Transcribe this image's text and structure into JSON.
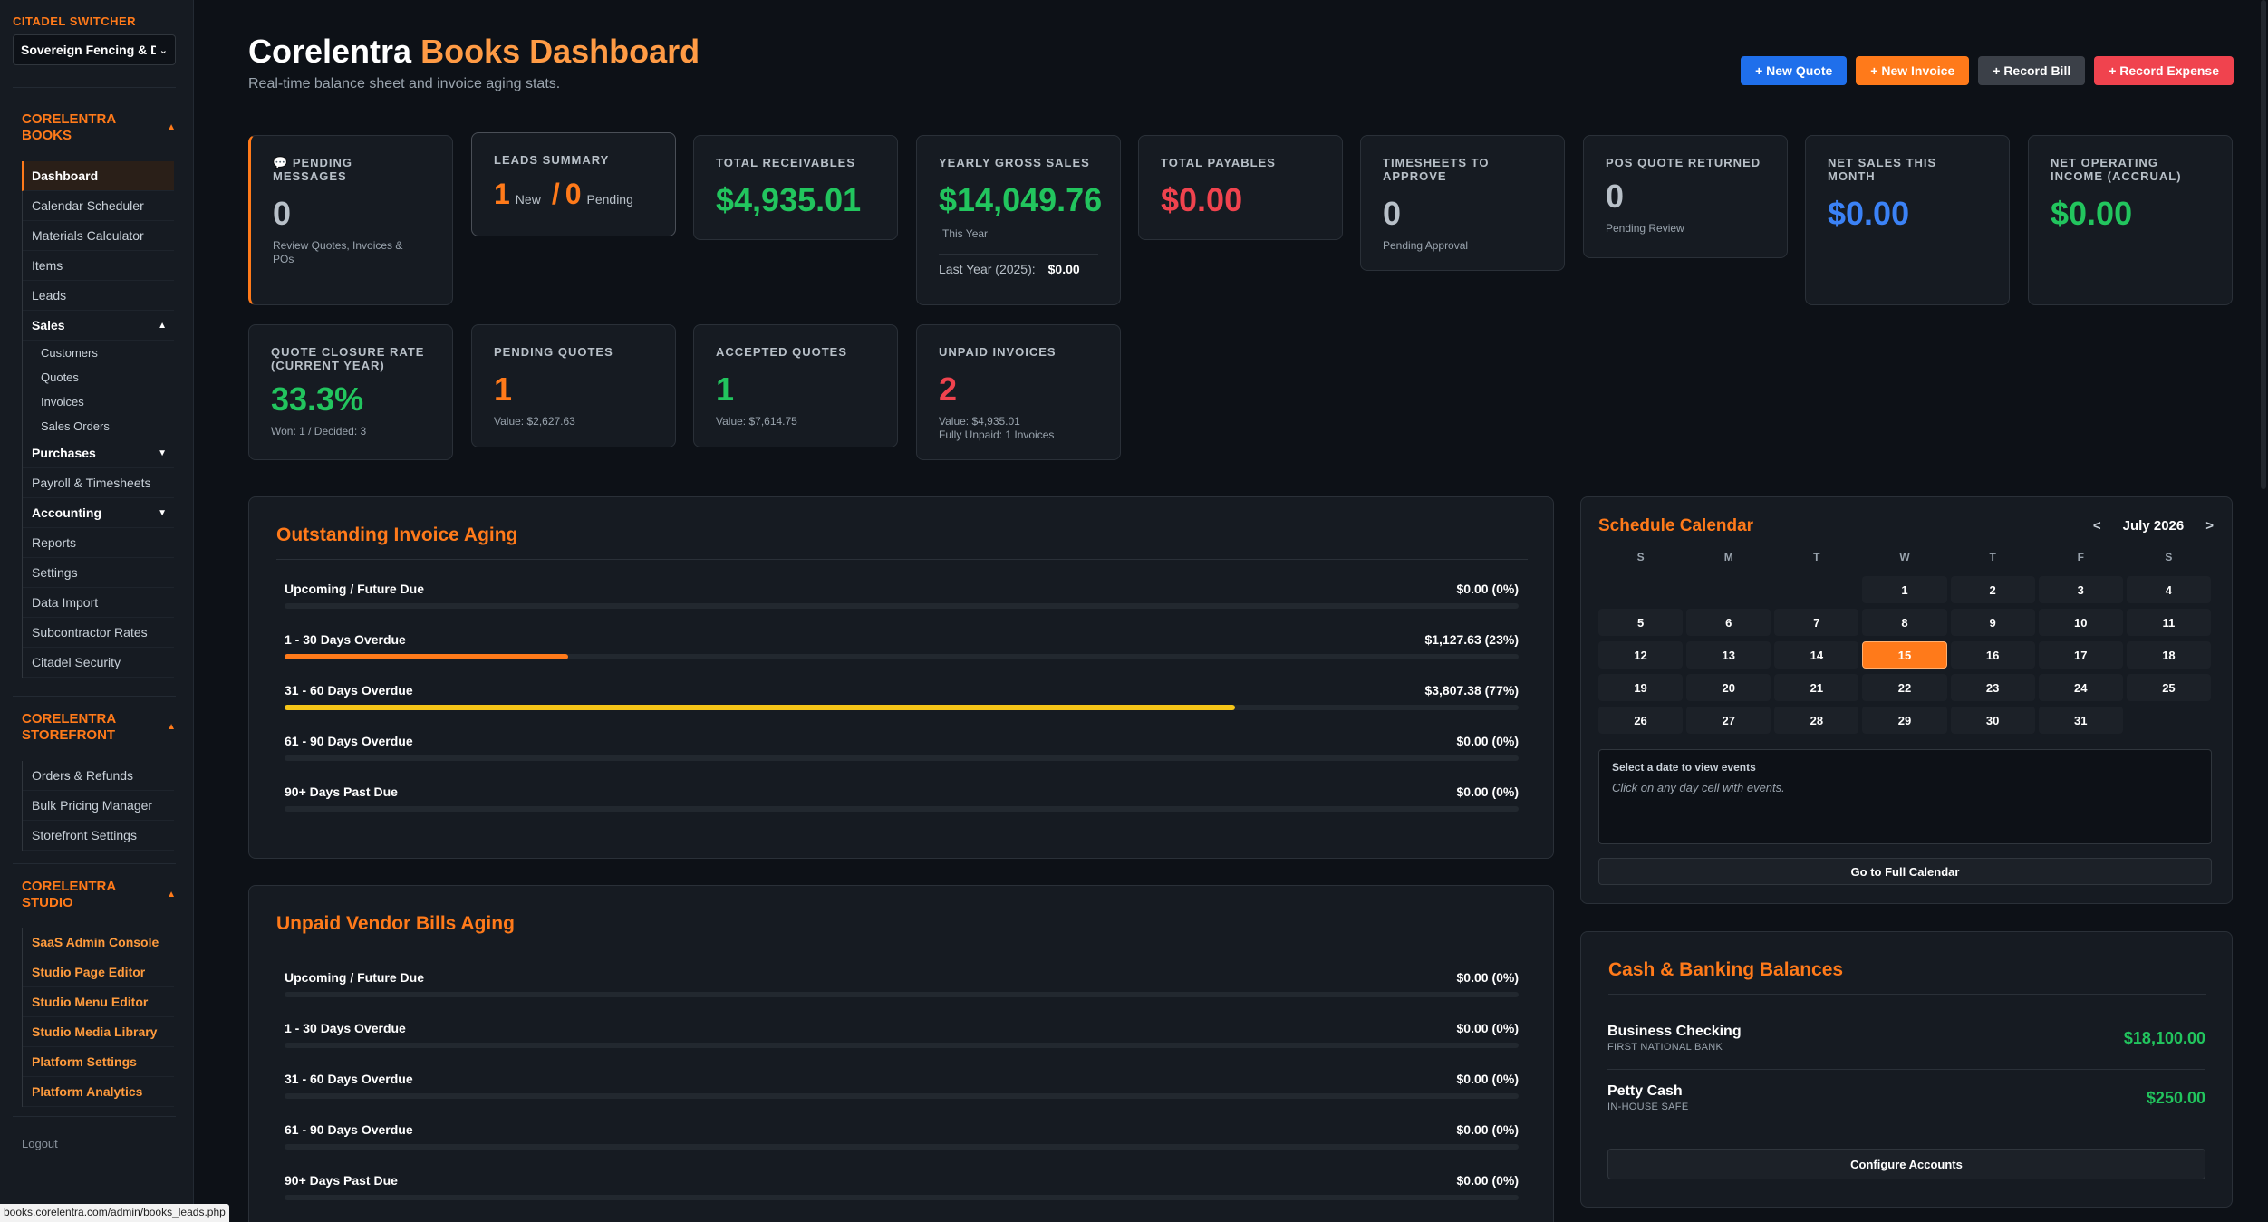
{
  "sidebar": {
    "switcher_title": "CITADEL SWITCHER",
    "switcher_value": "Sovereign Fencing & D",
    "books": {
      "title_line1": "CORELENTRA",
      "title_line2": "BOOKS",
      "items": {
        "dashboard": "Dashboard",
        "calendar": "Calendar Scheduler",
        "materials": "Materials Calculator",
        "items": "Items",
        "leads": "Leads",
        "sales": "Sales",
        "customers": "Customers",
        "quotes": "Quotes",
        "invoices": "Invoices",
        "sales_orders": "Sales Orders",
        "purchases": "Purchases",
        "payroll": "Payroll & Timesheets",
        "accounting": "Accounting",
        "reports": "Reports",
        "settings": "Settings",
        "data_import": "Data Import",
        "subcontractor": "Subcontractor Rates",
        "security": "Citadel Security"
      }
    },
    "storefront": {
      "title_line1": "CORELENTRA",
      "title_line2": "STOREFRONT",
      "items": {
        "orders": "Orders & Refunds",
        "bulk": "Bulk Pricing Manager",
        "settings": "Storefront Settings"
      }
    },
    "studio": {
      "title_line1": "CORELENTRA",
      "title_line2": "STUDIO",
      "items": {
        "saas": "SaaS Admin Console",
        "page_editor": "Studio Page Editor",
        "menu_editor": "Studio Menu Editor",
        "media": "Studio Media Library",
        "platform_settings": "Platform Settings",
        "analytics": "Platform Analytics"
      }
    },
    "logout": "Logout"
  },
  "header": {
    "title_main": "Corelentra",
    "title_accent": "Books Dashboard",
    "subtitle": "Real-time balance sheet and invoice aging stats."
  },
  "actions": {
    "new_quote": "+ New Quote",
    "new_invoice": "+ New Invoice",
    "record_bill": "+ Record Bill",
    "record_expense": "+ Record Expense"
  },
  "stats": {
    "pending_messages": {
      "label": "Pending Messages",
      "value": "0",
      "note": "Review Quotes, Invoices & POs"
    },
    "leads_summary": {
      "label": "Leads Summary",
      "new_count": "1",
      "new_label": "New",
      "sep": "/",
      "pending_count": "0",
      "pending_label": "Pending"
    },
    "total_receivables": {
      "label": "Total Receivables",
      "value": "$4,935.01"
    },
    "yearly_gross": {
      "label": "Yearly Gross Sales",
      "value": "$14,049.76",
      "note": "This Year",
      "last_year_label": "Last Year (2025):",
      "last_year_value": "$0.00"
    },
    "total_payables": {
      "label": "Total Payables",
      "value": "$0.00"
    },
    "timesheets": {
      "label": "Timesheets to Approve",
      "value": "0",
      "note": "Pending Approval"
    },
    "pos_quote": {
      "label": "POS Quote Returned",
      "value": "0",
      "note": "Pending Review"
    },
    "net_sales": {
      "label": "Net Sales This Month",
      "value": "$0.00"
    },
    "net_operating": {
      "label": "Net Operating Income (Accrual)",
      "value": "$0.00"
    },
    "quote_closure": {
      "label": "Quote Closure Rate (Current Year)",
      "value": "33.3%",
      "note": "Won: 1 / Decided: 3"
    },
    "pending_quotes": {
      "label": "Pending Quotes",
      "value": "1",
      "note": "Value: $2,627.63"
    },
    "accepted_quotes": {
      "label": "Accepted Quotes",
      "value": "1",
      "note": "Value: $7,614.75"
    },
    "unpaid_invoices": {
      "label": "Unpaid Invoices",
      "value": "2",
      "note1": "Value: $4,935.01",
      "note2": "Fully Unpaid: 1 Invoices"
    }
  },
  "invoice_aging": {
    "title": "Outstanding Invoice Aging",
    "rows": [
      {
        "label": "Upcoming / Future Due",
        "value": "$0.00 (0%)",
        "fraction": 0,
        "color": "#ff7a1a"
      },
      {
        "label": "1 - 30 Days Overdue",
        "value": "$1,127.63 (23%)",
        "fraction": 0.23,
        "color": "#ff7a1a"
      },
      {
        "label": "31 - 60 Days Overdue",
        "value": "$3,807.38 (77%)",
        "fraction": 0.77,
        "color": "#f5c518"
      },
      {
        "label": "61 - 90 Days Overdue",
        "value": "$0.00 (0%)",
        "fraction": 0,
        "color": "#f0434e"
      },
      {
        "label": "90+ Days Past Due",
        "value": "$0.00 (0%)",
        "fraction": 0,
        "color": "#f0434e"
      }
    ]
  },
  "bills_aging": {
    "title": "Unpaid Vendor Bills Aging",
    "rows": [
      {
        "label": "Upcoming / Future Due",
        "value": "$0.00 (0%)",
        "fraction": 0
      },
      {
        "label": "1 - 30 Days Overdue",
        "value": "$0.00 (0%)",
        "fraction": 0
      },
      {
        "label": "31 - 60 Days Overdue",
        "value": "$0.00 (0%)",
        "fraction": 0
      },
      {
        "label": "61 - 90 Days Overdue",
        "value": "$0.00 (0%)",
        "fraction": 0
      },
      {
        "label": "90+ Days Past Due",
        "value": "$0.00 (0%)",
        "fraction": 0
      }
    ]
  },
  "calendar": {
    "title": "Schedule Calendar",
    "prev": "<",
    "next": ">",
    "month": "July 2026",
    "weekdays": [
      "S",
      "M",
      "T",
      "W",
      "T",
      "F",
      "S"
    ],
    "leading_blanks": 3,
    "days_in_month": 31,
    "today": 15,
    "events_heading": "Select a date to view events",
    "events_hint": "Click on any day cell with events.",
    "full_calendar_button": "Go to Full Calendar"
  },
  "banking": {
    "title": "Cash & Banking Balances",
    "accounts": [
      {
        "name": "Business Checking",
        "institution": "FIRST NATIONAL BANK",
        "balance": "$18,100.00"
      },
      {
        "name": "Petty Cash",
        "institution": "IN-HOUSE SAFE",
        "balance": "$250.00"
      }
    ],
    "configure_button": "Configure Accounts"
  },
  "status_bar": {
    "url": "books.corelentra.com/admin/books_leads.php"
  }
}
